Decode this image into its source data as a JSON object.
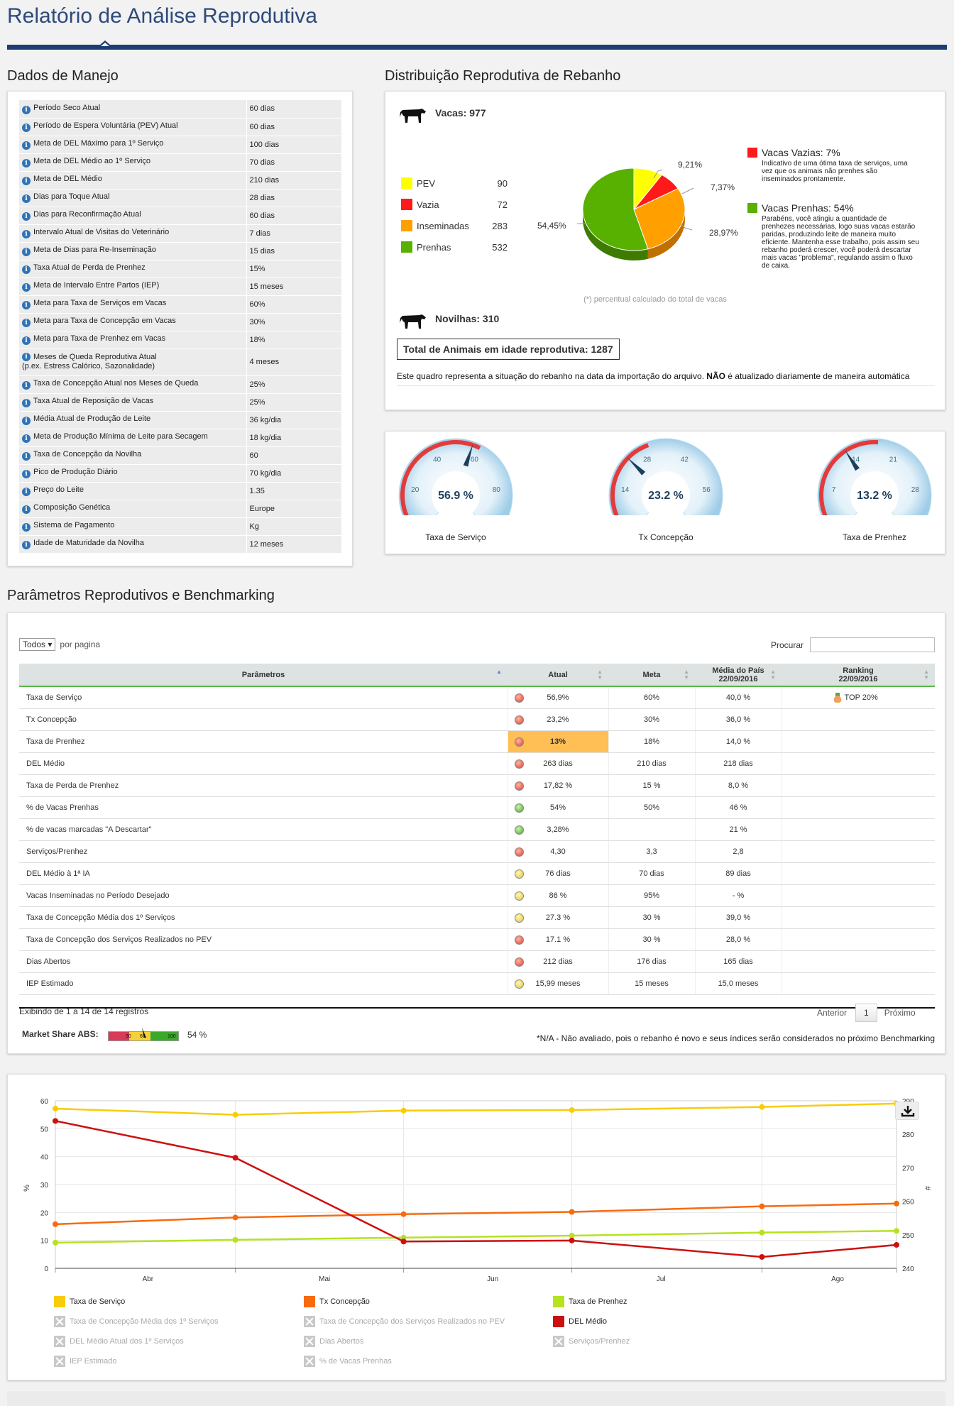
{
  "page_title": "Relatório de Análise Reprodutiva",
  "manejo": {
    "title": "Dados de Manejo",
    "rows": [
      {
        "label": "Período Seco Atual",
        "value": "60 dias"
      },
      {
        "label": "Período de Espera Voluntária (PEV) Atual",
        "value": "60 dias"
      },
      {
        "label": "Meta de DEL Máximo para 1º Serviço",
        "value": "100 dias"
      },
      {
        "label": "Meta de DEL Médio ao 1º Serviço",
        "value": "70 dias"
      },
      {
        "label": "Meta de DEL Médio",
        "value": "210 dias"
      },
      {
        "label": "Dias para Toque Atual",
        "value": "28 dias"
      },
      {
        "label": "Dias para Reconfirmação Atual",
        "value": "60 dias"
      },
      {
        "label": "Intervalo Atual de Visitas do Veterinário",
        "value": "7 dias"
      },
      {
        "label": "Meta de Dias para Re-Inseminação",
        "value": "15 dias"
      },
      {
        "label": "Taxa Atual de Perda de Prenhez",
        "value": "15%"
      },
      {
        "label": "Meta de Intervalo Entre Partos (IEP)",
        "value": "15 meses"
      },
      {
        "label": "Meta para Taxa de Serviços em Vacas",
        "value": "60%"
      },
      {
        "label": "Meta para Taxa de Concepção em Vacas",
        "value": "30%"
      },
      {
        "label": "Meta para Taxa de Prenhez em Vacas",
        "value": "18%"
      },
      {
        "label": "Meses de Queda Reprodutiva Atual",
        "label2": "(p.ex. Estress Calórico, Sazonalidade)",
        "value": "4 meses"
      },
      {
        "label": "Taxa de Concepção Atual nos Meses de Queda",
        "value": "25%"
      },
      {
        "label": "Taxa Atual de Reposição de Vacas",
        "value": "25%"
      },
      {
        "label": "Média Atual de Produção de Leite",
        "value": "36 kg/dia"
      },
      {
        "label": "Meta de Produção Mínima de Leite para Secagem",
        "value": "18 kg/dia"
      },
      {
        "label": "Taxa de Concepção da Novilha",
        "value": "60"
      },
      {
        "label": "Pico de Produção Diário",
        "value": "70 kg/dia"
      },
      {
        "label": "Preço do Leite",
        "value": "1.35"
      },
      {
        "label": "Composição Genética",
        "value": "Europe"
      },
      {
        "label": "Sistema de Pagamento",
        "value": "Kg"
      },
      {
        "label": "Idade de Maturidade da Novilha",
        "value": "12 meses"
      }
    ]
  },
  "distribution": {
    "title": "Distribuição Reprodutiva de Rebanho",
    "vacas_label": "Vacas: 977",
    "novilhas_label": "Novilhas: 310",
    "total_label": "Total de Animais em idade reprodutiva: 1287",
    "pct_note": "(*) percentual calculado do total de vacas",
    "footnote_pre": "Este quadro representa a situação do rebanho na data da importação do arquivo. ",
    "footnote_bold": "NÃO",
    "footnote_post": " é atualizado diariamente de maneira automática",
    "legend": [
      {
        "name": "PEV",
        "value": "90",
        "color": "#ffff00"
      },
      {
        "name": "Vazia",
        "value": "72",
        "color": "#ff1a1a"
      },
      {
        "name": "Inseminadas",
        "value": "283",
        "color": "#ff9f00"
      },
      {
        "name": "Prenhas",
        "value": "532",
        "color": "#58b000"
      }
    ],
    "pie_labels": [
      "9,21%",
      "7,37%",
      "28,97%",
      "54,45%"
    ],
    "notes": [
      {
        "title": "Vacas Vazias: 7%",
        "color": "#ff1a1a",
        "body": [
          "Indicativo de uma ótima taxa de serviços, uma",
          "vez que os animais não prenhes são",
          "inseminados prontamente."
        ]
      },
      {
        "title": "Vacas Prenhas: 54%",
        "color": "#58b000",
        "body": [
          "Parabéns, você atingiu a quantidade de",
          "prenhezes necessárias, logo suas vacas estarão",
          "paridas, produzindo leite de maneira muito",
          "eficiente. Mantenha esse trabalho, pois assim seu",
          "rebanho poderá crescer, você poderá descartar",
          "mais vacas \"problema\", regulando assim o fluxo",
          "de caixa."
        ]
      }
    ]
  },
  "gauges": [
    {
      "label": "Taxa de Serviço",
      "display": "56.9 %",
      "value": 56.9,
      "max": 100,
      "ticks": [
        "0",
        "20",
        "40",
        "60",
        "80",
        "100"
      ],
      "red_to": 60
    },
    {
      "label": "Tx Concepção",
      "display": "23.2 %",
      "value": 23.2,
      "max": 70,
      "ticks": [
        "0",
        "14",
        "28",
        "42",
        "56",
        "70"
      ],
      "red_to": 30
    },
    {
      "label": "Taxa de Prenhez",
      "display": "13.2 %",
      "value": 13.2,
      "max": 35,
      "ticks": [
        "0",
        "7",
        "14",
        "21",
        "28",
        "35"
      ],
      "red_to": 18
    }
  ],
  "benchmark": {
    "title": "Parâmetros Reprodutivos e Benchmarking",
    "page_size": "Todos",
    "per_page": "por pagina",
    "search_label": "Procurar",
    "columns": [
      "Parâmetros",
      "Atual",
      "Meta",
      "Média do País",
      "22/09/2016",
      "Ranking",
      "22/09/2016"
    ],
    "rows": [
      {
        "param": "Taxa de Serviço",
        "status": "red",
        "atual": "56,9%",
        "meta": "60%",
        "media": "40,0 %",
        "ranking": "TOP 20%"
      },
      {
        "param": "Tx Concepção",
        "status": "red",
        "atual": "23,2%",
        "meta": "30%",
        "media": "36,0 %",
        "ranking": ""
      },
      {
        "param": "Taxa de Prenhez",
        "status": "red",
        "atual": "13%",
        "meta": "18%",
        "media": "14,0 %",
        "ranking": "",
        "highlight": true
      },
      {
        "param": "DEL Médio",
        "status": "red",
        "atual": "263 dias",
        "meta": "210 dias",
        "media": "218 dias",
        "ranking": ""
      },
      {
        "param": "Taxa de Perda de Prenhez",
        "status": "red",
        "atual": "17,82 %",
        "meta": "15 %",
        "media": "8,0 %",
        "ranking": ""
      },
      {
        "param": "% de Vacas Prenhas",
        "status": "green",
        "atual": "54%",
        "meta": "50%",
        "media": "46 %",
        "ranking": ""
      },
      {
        "param": "% de vacas marcadas \"A Descartar\"",
        "status": "green",
        "atual": "3,28%",
        "meta": "",
        "media": "21 %",
        "ranking": ""
      },
      {
        "param": "Serviços/Prenhez",
        "status": "red",
        "atual": "4,30",
        "meta": "3,3",
        "media": "2,8",
        "ranking": ""
      },
      {
        "param": "DEL Médio à 1ª IA",
        "status": "yellow",
        "atual": "76 dias",
        "meta": "70 dias",
        "media": "89 dias",
        "ranking": ""
      },
      {
        "param": "Vacas Inseminadas no Período Desejado",
        "status": "yellow",
        "atual": "86 %",
        "meta": "95%",
        "media": "- %",
        "ranking": ""
      },
      {
        "param": "Taxa de Concepção Média dos 1º Serviços",
        "status": "yellow",
        "atual": "27.3 %",
        "meta": "30 %",
        "media": "39,0 %",
        "ranking": ""
      },
      {
        "param": "Taxa de Concepção dos Serviços Realizados no PEV",
        "status": "red",
        "atual": "17.1 %",
        "meta": "30 %",
        "media": "28,0 %",
        "ranking": ""
      },
      {
        "param": "Dias Abertos",
        "status": "red",
        "atual": "212 dias",
        "meta": "176 dias",
        "media": "165 dias",
        "ranking": ""
      },
      {
        "param": "IEP Estimado",
        "status": "yellow",
        "atual": "15,99 meses",
        "meta": "15 meses",
        "media": "15,0 meses",
        "ranking": ""
      }
    ],
    "info_text": "Exibindo de 1 a 14 de 14 registros",
    "prev_label": "Anterior",
    "page_num": "1",
    "next_label": "Próximo",
    "market_share_label": "Market Share ABS:",
    "market_share_value": "54 %",
    "market_ticks": [
      "30",
      "60",
      "100"
    ],
    "footnote": "*N/A - Não avaliado, pois o rebanho é novo e seus índices serão considerados no próximo Benchmarking"
  },
  "chart_data": {
    "type": "line",
    "x": [
      "Abr",
      "Mai",
      "Jun",
      "Jul",
      "Ago"
    ],
    "ylabel": "%",
    "y2label": "#",
    "ylim": [
      0,
      60
    ],
    "y2lim": [
      240,
      290
    ],
    "yticks": [
      "0",
      "10",
      "20",
      "30",
      "40",
      "50",
      "60"
    ],
    "y2ticks": [
      "240",
      "250",
      "260",
      "270",
      "280",
      "290"
    ],
    "series": [
      {
        "name": "Taxa de Serviço",
        "color": "#f8cc0a",
        "axis": "left",
        "x": [
          0.0,
          1.07,
          2.07,
          3.07,
          4.2,
          5.0
        ],
        "values": [
          57.2,
          55.0,
          56.5,
          56.7,
          57.8,
          59.0
        ]
      },
      {
        "name": "Tx Concepção",
        "color": "#f76b0f",
        "axis": "left",
        "x": [
          0.0,
          1.07,
          2.07,
          3.07,
          4.2,
          5.0
        ],
        "values": [
          15.8,
          18.2,
          19.4,
          20.2,
          22.2,
          23.2
        ]
      },
      {
        "name": "Taxa de Prenhez",
        "color": "#b6e21f",
        "axis": "left",
        "x": [
          0.0,
          1.07,
          2.07,
          3.07,
          4.2,
          5.0
        ],
        "values": [
          9.2,
          10.2,
          11.0,
          11.7,
          12.8,
          13.4
        ]
      },
      {
        "name": "DEL Médio",
        "color": "#cc1010",
        "axis": "right",
        "x": [
          0.0,
          1.07,
          2.07,
          3.07,
          4.2,
          5.0
        ],
        "values": [
          284,
          273,
          248,
          248.3,
          243.4,
          247
        ]
      }
    ],
    "legend": [
      {
        "name": "Taxa de Serviço",
        "active": true,
        "color": "#f8cc0a"
      },
      {
        "name": "Tx Concepção",
        "active": true,
        "color": "#f76b0f"
      },
      {
        "name": "Taxa de Prenhez",
        "active": true,
        "color": "#b6e21f"
      },
      {
        "name": "Taxa de Concepção Média dos 1º Serviços",
        "active": false
      },
      {
        "name": "Taxa de Concepção dos Serviços Realizados no PEV",
        "active": false
      },
      {
        "name": "DEL Médio",
        "active": true,
        "color": "#cc1010"
      },
      {
        "name": "DEL Médio Atual dos 1º Serviços",
        "active": false
      },
      {
        "name": "Dias Abertos",
        "active": false
      },
      {
        "name": "Serviços/Prenhez",
        "active": false
      },
      {
        "name": "IEP Estimado",
        "active": false
      },
      {
        "name": "% de Vacas Prenhas",
        "active": false
      }
    ]
  }
}
